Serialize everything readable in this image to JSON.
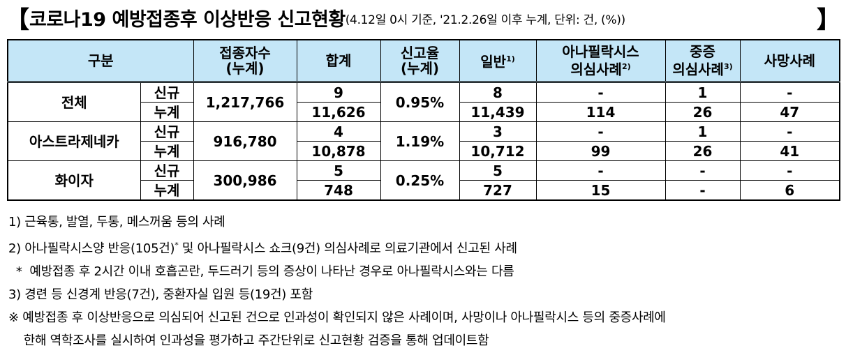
{
  "title": {
    "open_bracket": "【",
    "main": "코로나19 예방접종후 이상반응 신고현황",
    "sub": "(4.12일 0시 기준, '21.2.26일 이후 누계, 단위: 건, (%))",
    "close_bracket": "】"
  },
  "header": {
    "category": "구분",
    "vaccinated_l1": "접종자수",
    "vaccinated_l2": "(누계)",
    "total": "합계",
    "rate_l1": "신고율",
    "rate_l2": "(누계)",
    "general": "일반",
    "general_sup": "1)",
    "anaph_l1": "아나필락시스",
    "anaph_l2": "의심사례",
    "anaph_sup": "2)",
    "severe_l1": "중증",
    "severe_l2": "의심사례",
    "severe_sup": "3)",
    "death": "사망사례"
  },
  "rows": [
    {
      "name": "전체",
      "vaccinated": "1,217,766",
      "rate": "0.95%",
      "new": {
        "label": "신규",
        "total": "9",
        "general": "8",
        "anaph": "-",
        "severe": "1",
        "death": "-"
      },
      "cum": {
        "label": "누계",
        "total": "11,626",
        "general": "11,439",
        "anaph": "114",
        "severe": "26",
        "death": "47"
      }
    },
    {
      "name": "아스트라제네카",
      "vaccinated": "916,780",
      "rate": "1.19%",
      "new": {
        "label": "신규",
        "total": "4",
        "general": "3",
        "anaph": "-",
        "severe": "1",
        "death": "-"
      },
      "cum": {
        "label": "누계",
        "total": "10,878",
        "general": "10,712",
        "anaph": "99",
        "severe": "26",
        "death": "41"
      }
    },
    {
      "name": "화이자",
      "vaccinated": "300,986",
      "rate": "0.25%",
      "new": {
        "label": "신규",
        "total": "5",
        "general": "5",
        "anaph": "-",
        "severe": "-",
        "death": "-"
      },
      "cum": {
        "label": "누계",
        "total": "748",
        "general": "727",
        "anaph": "15",
        "severe": "-",
        "death": "6"
      }
    }
  ],
  "notes": {
    "n1": "1)  근육통, 발열, 두통, 메스꺼움 등의 사례",
    "n2a": "2)  아나필락시스양 반응(105건)",
    "n2sup": "*",
    "n2b": " 및 아나필락시스 쇼크(9건) 의심사례로 의료기관에서 신고된 사례",
    "n2star": "  *  예방접종 후 2시간 이내 호흡곤란, 두드러기 등의 증상이 나타난 경우로 아나필락시스와는 다름",
    "n3": "3)  경련 등 신경계 반응(7건), 중환자실 입원 등(19건) 포함",
    "n4a": "※ 예방접종 후 이상반응으로 의심되어 신고된 건으로 인과성이 확인되지 않은 사례이며, 사망이나 아나필락시스 등의 중증사례에",
    "n4b": "    한해 역학조사를 실시하여 인과성을 평가하고 주간단위로 신고현황 검증을 통해 업데이트함"
  }
}
